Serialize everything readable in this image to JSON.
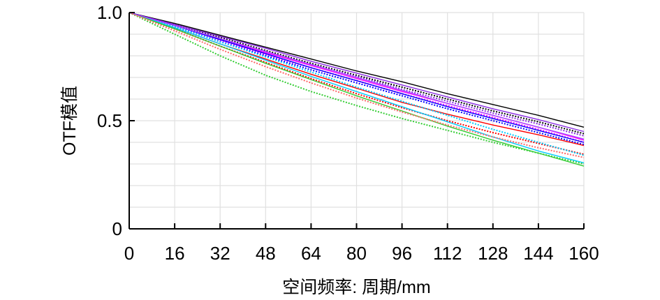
{
  "chart_data": {
    "type": "line",
    "title": "",
    "xlabel": "空间频率: 周期/mm",
    "ylabel": "OTF模值",
    "xlim": [
      0,
      160
    ],
    "ylim": [
      0,
      1.0
    ],
    "x_ticks": [
      0,
      16,
      32,
      48,
      64,
      80,
      96,
      112,
      128,
      144,
      160
    ],
    "x_tick_labels": [
      "0",
      "16",
      "32",
      "48",
      "64",
      "80",
      "96",
      "112",
      "128",
      "144",
      "160"
    ],
    "y_ticks": [
      0,
      0.5,
      1.0
    ],
    "y_tick_labels": [
      "0",
      "0.5",
      "1.0"
    ],
    "grid": true,
    "legend": "none",
    "x": [
      0,
      16,
      32,
      48,
      64,
      80,
      96,
      112,
      128,
      144,
      160
    ],
    "series": [
      {
        "color": "#000000",
        "style": "solid",
        "values": [
          1.0,
          0.95,
          0.895,
          0.84,
          0.785,
          0.73,
          0.68,
          0.625,
          0.575,
          0.525,
          0.47
        ]
      },
      {
        "color": "#000000",
        "style": "dotted",
        "values": [
          1.0,
          0.945,
          0.885,
          0.825,
          0.765,
          0.71,
          0.655,
          0.6,
          0.545,
          0.495,
          0.44
        ]
      },
      {
        "color": "#8a2be2",
        "style": "solid",
        "values": [
          1.0,
          0.945,
          0.89,
          0.835,
          0.775,
          0.72,
          0.665,
          0.61,
          0.555,
          0.505,
          0.45
        ]
      },
      {
        "color": "#8a2be2",
        "style": "dotted",
        "values": [
          1.0,
          0.94,
          0.88,
          0.82,
          0.76,
          0.705,
          0.645,
          0.59,
          0.535,
          0.485,
          0.43
        ]
      },
      {
        "color": "#ff00ff",
        "style": "solid",
        "values": [
          1.0,
          0.94,
          0.875,
          0.815,
          0.755,
          0.695,
          0.635,
          0.58,
          0.525,
          0.47,
          0.41
        ]
      },
      {
        "color": "#ff00ff",
        "style": "dotted",
        "values": [
          1.0,
          0.935,
          0.87,
          0.805,
          0.745,
          0.685,
          0.625,
          0.57,
          0.515,
          0.46,
          0.4
        ]
      },
      {
        "color": "#0000ff",
        "style": "solid",
        "values": [
          1.0,
          0.94,
          0.875,
          0.81,
          0.745,
          0.685,
          0.625,
          0.565,
          0.51,
          0.455,
          0.4
        ]
      },
      {
        "color": "#0000ff",
        "style": "dotted",
        "values": [
          1.0,
          0.935,
          0.865,
          0.8,
          0.735,
          0.675,
          0.615,
          0.555,
          0.5,
          0.445,
          0.39
        ]
      },
      {
        "color": "#ff0000",
        "style": "solid",
        "values": [
          1.0,
          0.93,
          0.855,
          0.785,
          0.715,
          0.65,
          0.585,
          0.53,
          0.48,
          0.435,
          0.385
        ]
      },
      {
        "color": "#ff0000",
        "style": "dotted",
        "values": [
          1.0,
          0.925,
          0.845,
          0.77,
          0.695,
          0.625,
          0.56,
          0.5,
          0.445,
          0.395,
          0.345
        ]
      },
      {
        "color": "#00ccff",
        "style": "solid",
        "values": [
          1.0,
          0.93,
          0.855,
          0.78,
          0.705,
          0.635,
          0.565,
          0.495,
          0.425,
          0.36,
          0.305
        ]
      },
      {
        "color": "#00ccff",
        "style": "dotted",
        "values": [
          1.0,
          0.935,
          0.865,
          0.795,
          0.725,
          0.655,
          0.59,
          0.525,
          0.46,
          0.4,
          0.34
        ]
      },
      {
        "color": "#33cc33",
        "style": "solid",
        "values": [
          1.0,
          0.925,
          0.845,
          0.765,
          0.69,
          0.615,
          0.545,
          0.475,
          0.41,
          0.35,
          0.29
        ]
      },
      {
        "color": "#33cc33",
        "style": "dotted",
        "values": [
          1.0,
          0.9,
          0.8,
          0.71,
          0.635,
          0.57,
          0.51,
          0.455,
          0.4,
          0.35,
          0.3
        ]
      },
      {
        "color": "#aa44ff",
        "style": "solid",
        "values": [
          1.0,
          0.94,
          0.88,
          0.82,
          0.76,
          0.7,
          0.64,
          0.58,
          0.525,
          0.47,
          0.415
        ]
      },
      {
        "color": "#ff6666",
        "style": "dotted",
        "values": [
          1.0,
          0.915,
          0.83,
          0.75,
          0.675,
          0.605,
          0.54,
          0.48,
          0.425,
          0.375,
          0.33
        ]
      }
    ]
  }
}
